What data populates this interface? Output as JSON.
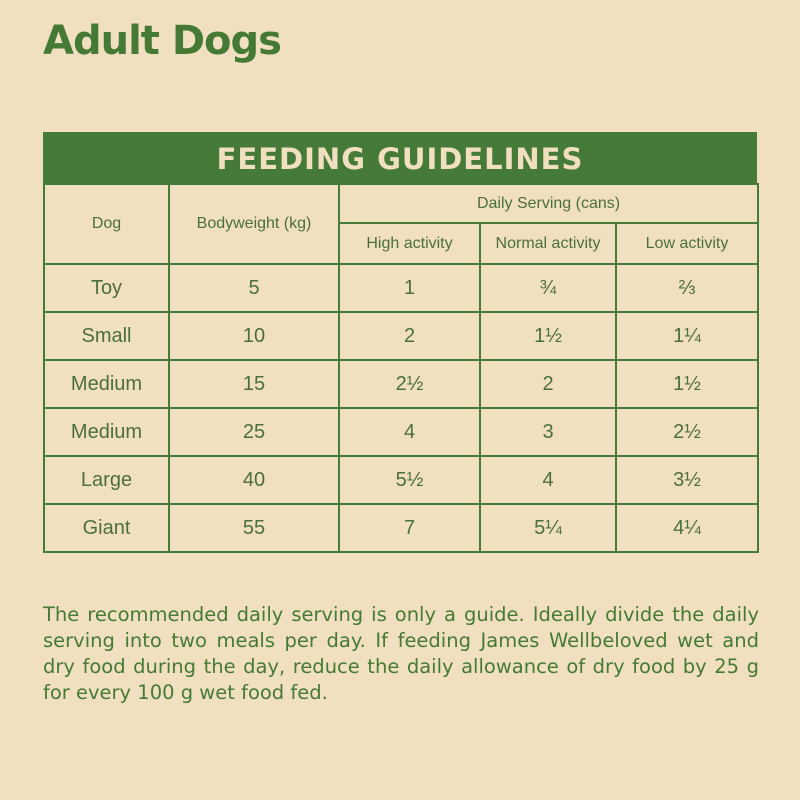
{
  "title": "Adult Dogs",
  "banner": "FEEDING GUIDELINES",
  "headers": {
    "dog": "Dog",
    "bodyweight": "Bodyweight (kg)",
    "daily": "Daily Serving (cans)",
    "high": "High activity",
    "normal": "Normal activity",
    "low": "Low activity"
  },
  "rows": [
    [
      "Toy",
      "5",
      "1",
      "¾",
      "⅔"
    ],
    [
      "Small",
      "10",
      "2",
      "1½",
      "1¼"
    ],
    [
      "Medium",
      "15",
      "2½",
      "2",
      "1½"
    ],
    [
      "Medium",
      "25",
      "4",
      "3",
      "2½"
    ],
    [
      "Large",
      "40",
      "5½",
      "4",
      "3½"
    ],
    [
      "Giant",
      "55",
      "7",
      "5¼",
      "4¼"
    ]
  ],
  "note": "The recommended daily serving is only a guide. Ideally divide the daily serving into two meals per day. If feeding James Wellbeloved wet and dry food during the day, reduce the daily allowance of dry food by 25 g for every 100 g wet food fed.",
  "colors": {
    "background": "#f1e0c0",
    "green": "#467a38"
  }
}
